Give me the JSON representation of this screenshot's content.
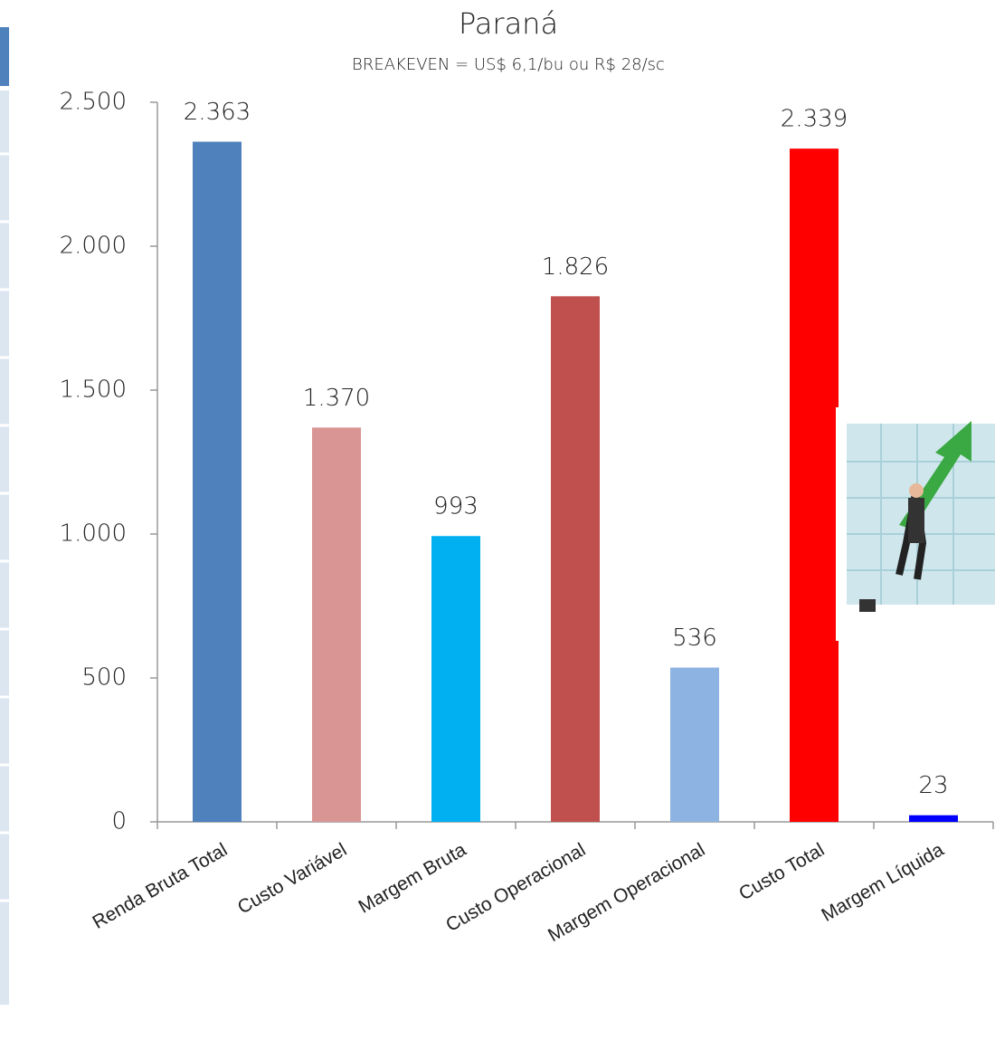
{
  "chart_data": {
    "type": "bar",
    "title": "Paraná",
    "subtitle": "BREAKEVEN = US$ 6,1/bu ou R$ 28/sc",
    "categories": [
      "Renda Bruta Total",
      "Custo Variável",
      "Margem Bruta",
      "Custo Operacional",
      "Margem Operacional",
      "Custo Total",
      "Margem Líquida"
    ],
    "values": [
      2363,
      1370,
      993,
      1826,
      536,
      2339,
      23
    ],
    "value_labels": [
      "2.363",
      "1.370",
      "993",
      "1.826",
      "536",
      "2.339",
      "23"
    ],
    "colors": [
      "#4f81bd",
      "#d99594",
      "#00b0f0",
      "#c0504d",
      "#8db3e2",
      "#ff0000",
      "#0000ff"
    ],
    "ylim": [
      0,
      2500
    ],
    "yticks": [
      0,
      500,
      {
        "value": 1000,
        "label": "1.000"
      },
      {
        "value": 1500,
        "label": "1.500"
      },
      {
        "value": 2000,
        "label": "2.000"
      },
      {
        "value": 2500,
        "label": "2.500"
      }
    ],
    "grid": false
  }
}
